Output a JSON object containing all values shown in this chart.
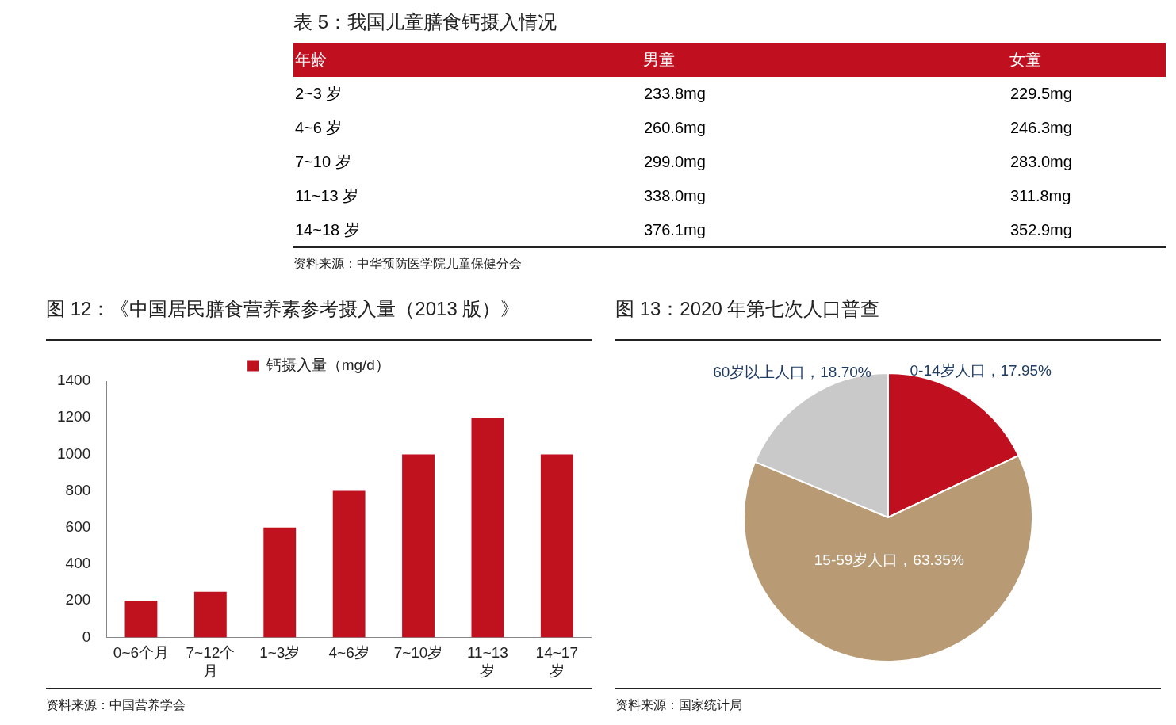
{
  "chart_data": [
    {
      "type": "heatmap",
      "title": "表 5：我国儿童膳食钙摄入情况",
      "ylabel": "年龄",
      "categories": [
        "男童",
        "女童"
      ],
      "y_categories": [
        "2~3 岁",
        "4~6 岁",
        "7~10 岁",
        "11~13 岁",
        "14~18 岁"
      ],
      "cells": [
        [
          233.8,
          229.5
        ],
        [
          260.6,
          246.3
        ],
        [
          299.0,
          283.0
        ],
        [
          338.0,
          311.8
        ],
        [
          376.1,
          352.9
        ]
      ],
      "cell_labels": [
        [
          "233.8mg",
          "229.5mg"
        ],
        [
          "260.6mg",
          "246.3mg"
        ],
        [
          "299.0mg",
          "283.0mg"
        ],
        [
          "338.0mg",
          "311.8mg"
        ],
        [
          "376.1mg",
          "352.9mg"
        ]
      ],
      "annotations": [
        "资料来源：中华预防医学院儿童保健分会"
      ]
    },
    {
      "type": "bar",
      "title": "图 12：《中国居民膳食营养素参考摄入量（2013 版）》",
      "categories": [
        "0~6个月",
        "7~12个月",
        "1~3岁",
        "4~6岁",
        "7~10岁",
        "11~13岁",
        "14~17岁"
      ],
      "series": [
        {
          "name": "钙摄入量（mg/d）",
          "color": "#c0111f",
          "values": [
            200,
            250,
            600,
            800,
            1000,
            1200,
            1000
          ]
        }
      ],
      "ylim": [
        0,
        1400
      ],
      "yticks": [
        0,
        200,
        400,
        600,
        800,
        1000,
        1200,
        1400
      ],
      "grid": false,
      "legend": "top",
      "annotations": [
        "资料来源：中国营养学会"
      ]
    },
    {
      "type": "pie",
      "title": "图 13：2020 年第七次人口普查",
      "categories": [
        "0-14岁人口",
        "15-59岁人口",
        "60岁以上人口"
      ],
      "values": [
        17.95,
        63.35,
        18.7
      ],
      "value_labels": [
        "17.95%",
        "63.35%",
        "18.70%"
      ],
      "colors": [
        "#c00f1f",
        "#b89a74",
        "#c9c9c9"
      ],
      "legend": false,
      "annotations": [
        "资料来源：国家统计局"
      ]
    }
  ]
}
